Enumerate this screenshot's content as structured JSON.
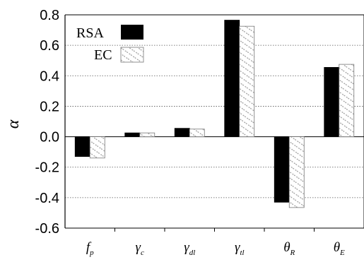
{
  "chart_data": {
    "type": "bar",
    "ylabel": "α",
    "ylim": [
      -0.6,
      0.8
    ],
    "yticks": [
      -0.6,
      -0.4,
      -0.2,
      0.0,
      0.2,
      0.4,
      0.6,
      0.8
    ],
    "ytick_labels": [
      "-0.6",
      "-0.4",
      "-0.2",
      "0.0",
      "0.2",
      "0.4",
      "0.6",
      "0.8"
    ],
    "grid": "horizontal dotted",
    "legend": "top-left",
    "categories": [
      {
        "main": "f",
        "sub": "p"
      },
      {
        "main": "γ",
        "sub": "c"
      },
      {
        "main": "γ",
        "sub": "dl"
      },
      {
        "main": "γ",
        "sub": "tl"
      },
      {
        "main": "θ",
        "sub": "R"
      },
      {
        "main": "θ",
        "sub": "E"
      }
    ],
    "series": [
      {
        "name": "RSA",
        "color": "#000000",
        "pattern": "solid",
        "values": [
          -0.13,
          0.025,
          0.055,
          0.765,
          -0.43,
          0.455
        ]
      },
      {
        "name": "EC",
        "color": "#aaaaaa",
        "pattern": "hatched",
        "values": [
          -0.14,
          0.025,
          0.05,
          0.725,
          -0.465,
          0.475
        ]
      }
    ]
  }
}
